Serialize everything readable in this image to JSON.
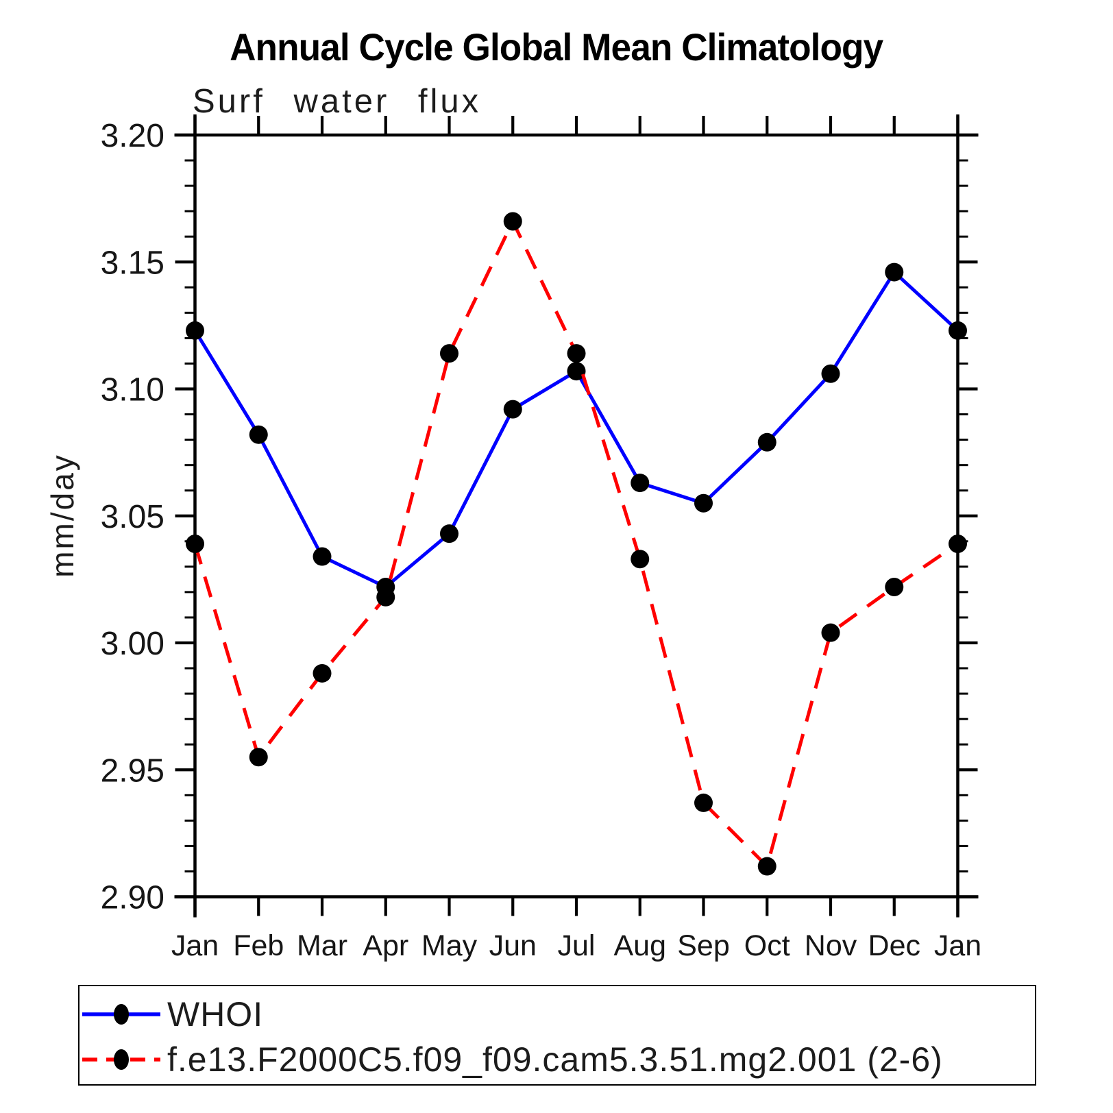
{
  "page": {
    "background_color": "#ffffff",
    "text_color": "#000000"
  },
  "chart_data": {
    "type": "line",
    "title": "Annual Cycle Global Mean Climatology",
    "subtitle": "Surf water flux",
    "xlabel": "",
    "ylabel": "mm/day",
    "categories": [
      "Jan",
      "Feb",
      "Mar",
      "Apr",
      "May",
      "Jun",
      "Jul",
      "Aug",
      "Sep",
      "Oct",
      "Nov",
      "Dec",
      "Jan"
    ],
    "ylim": [
      2.9,
      3.2
    ],
    "ytick_major_step": 0.05,
    "ytick_minor_step": 0.01,
    "ytick_labels": [
      "2.90",
      "2.95",
      "3.00",
      "3.05",
      "3.10",
      "3.15",
      "3.20"
    ],
    "grid": false,
    "legend_position": "bottom",
    "axis_color": "#000000",
    "marker_color": "#000000",
    "series": [
      {
        "name": "WHOI",
        "color": "#0000ff",
        "line_style": "solid",
        "marker": "filled-circle",
        "values": [
          3.123,
          3.082,
          3.034,
          3.022,
          3.043,
          3.092,
          3.107,
          3.063,
          3.055,
          3.079,
          3.106,
          3.146,
          3.123
        ]
      },
      {
        "name": "f.e13.F2000C5.f09_f09.cam5.3.51.mg2.001 (2-6)",
        "color": "#ff0000",
        "line_style": "dashed",
        "marker": "filled-circle",
        "values": [
          3.039,
          2.955,
          2.988,
          3.018,
          3.114,
          3.166,
          3.114,
          3.033,
          2.937,
          2.912,
          3.004,
          3.022,
          3.039
        ]
      }
    ]
  }
}
